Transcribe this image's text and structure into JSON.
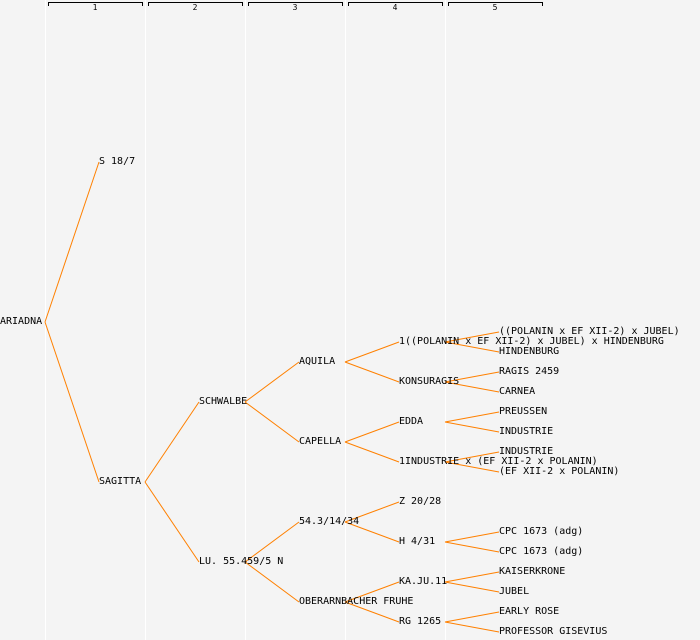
{
  "columns": [
    "1",
    "2",
    "3",
    "4",
    "5"
  ],
  "colors": {
    "edge": "#ff8000",
    "background": "#f4f4f4",
    "column_line": "#ffffff",
    "text": "#000000"
  },
  "tree": {
    "name": "ARIADNA",
    "children": [
      {
        "name": "S 18/7",
        "children": []
      },
      {
        "name": "SAGITTA",
        "children": [
          {
            "name": "SCHWALBE",
            "children": [
              {
                "name": "AQUILA",
                "children": [
                  {
                    "name": "1((POLANIN x EF XII-2) x JUBEL) x HINDENBURG",
                    "children": [
                      {
                        "name": "((POLANIN x EF XII-2) x JUBEL)"
                      },
                      {
                        "name": "HINDENBURG"
                      }
                    ]
                  },
                  {
                    "name": "KONSURAGIS",
                    "children": [
                      {
                        "name": "RAGIS 2459"
                      },
                      {
                        "name": "CARNEA"
                      }
                    ]
                  }
                ]
              },
              {
                "name": "CAPELLA",
                "children": [
                  {
                    "name": "EDDA",
                    "children": [
                      {
                        "name": "PREUSSEN"
                      },
                      {
                        "name": "INDUSTRIE"
                      }
                    ]
                  },
                  {
                    "name": "1INDUSTRIE x (EF XII-2 x POLANIN)",
                    "children": [
                      {
                        "name": "INDUSTRIE"
                      },
                      {
                        "name": "(EF XII-2 x POLANIN)"
                      }
                    ]
                  }
                ]
              }
            ]
          },
          {
            "name": "LU. 55.459/5 N",
            "children": [
              {
                "name": "54.3/14/34",
                "children": [
                  {
                    "name": "Z 20/28",
                    "children": []
                  },
                  {
                    "name": "H 4/31",
                    "children": [
                      {
                        "name": "CPC 1673 (adg)"
                      },
                      {
                        "name": "CPC 1673 (adg)"
                      }
                    ]
                  }
                ]
              },
              {
                "name": "OBERARNBACHER FRUHE",
                "children": [
                  {
                    "name": "KA.JU.11",
                    "children": [
                      {
                        "name": "KAISERKRONE"
                      },
                      {
                        "name": "JUBEL"
                      }
                    ]
                  },
                  {
                    "name": "RG 1265",
                    "children": [
                      {
                        "name": "EARLY ROSE"
                      },
                      {
                        "name": "PROFESSOR GISEVIUS"
                      }
                    ]
                  }
                ]
              }
            ]
          }
        ]
      }
    ]
  }
}
